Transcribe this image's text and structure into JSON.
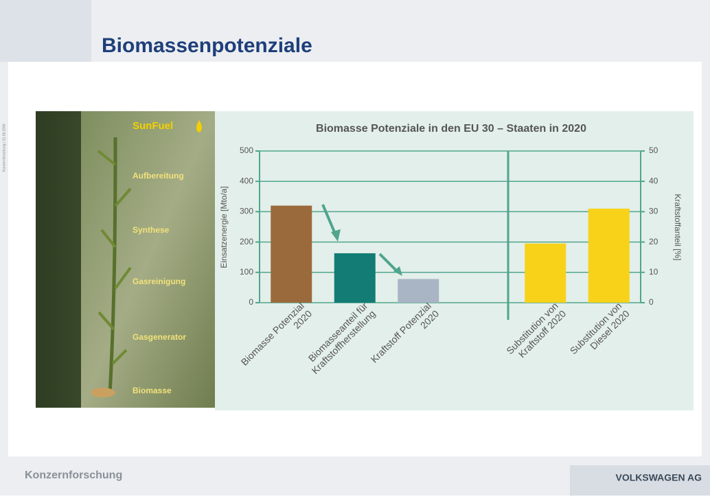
{
  "slide": {
    "title": "Biomassenpotenziale",
    "side_note": "Konzernforschung / 21.06.2006",
    "footer_left": "Konzernforschung",
    "footer_right": "VOLKSWAGEN AG"
  },
  "diagram": {
    "labels": [
      "SunFuel",
      "Aufbereitung",
      "Synthese",
      "Gasreinigung",
      "Gasgenerator",
      "Biomasse"
    ]
  },
  "chart_data": {
    "type": "bar",
    "title": "Biomasse Potenziale in den EU 30 – Staaten in 2020",
    "ylabel": "Einsatzenergie [Mto/a]",
    "y2label": "Kraftstoffanteil [%]",
    "categories": [
      "Biomasse Potenzial\n2020",
      "Biomasseanteil für\nKraftstoffherstellung",
      "Kraftstoff Potenzial\n2020",
      null,
      "Substitution von\nKraftstoff 2020",
      "Substitution von\nDiesel 2020"
    ],
    "series": [
      {
        "colors": [
          "#9b6a3c",
          "#137c74",
          "#a9b4c4",
          null,
          null,
          null
        ],
        "values": [
          320,
          163,
          78,
          null,
          null,
          null
        ]
      },
      {
        "axis": "y2",
        "color": "#f7d219",
        "values": [
          null,
          null,
          null,
          null,
          19.5,
          31
        ]
      }
    ],
    "ylim": [
      0,
      500
    ],
    "yticks": [
      0,
      100,
      200,
      300,
      400,
      500
    ],
    "y2lim": [
      0,
      50
    ],
    "y2ticks": [
      0,
      10,
      20,
      30,
      40,
      50
    ],
    "grid": true,
    "grid_color": "#4fa58d"
  }
}
